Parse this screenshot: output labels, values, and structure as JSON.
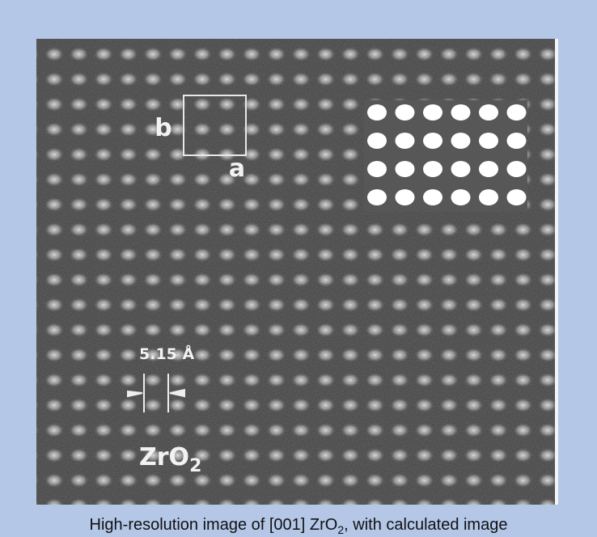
{
  "figure": {
    "labels": {
      "b": "b",
      "a": "a",
      "spacing": "5.15 Å",
      "formula": {
        "main": "ZrO",
        "subscript": "2"
      }
    },
    "caption": {
      "before": "High-resolution image of [001] ZrO",
      "subscript": "2",
      "after": ", with calculated image"
    }
  }
}
